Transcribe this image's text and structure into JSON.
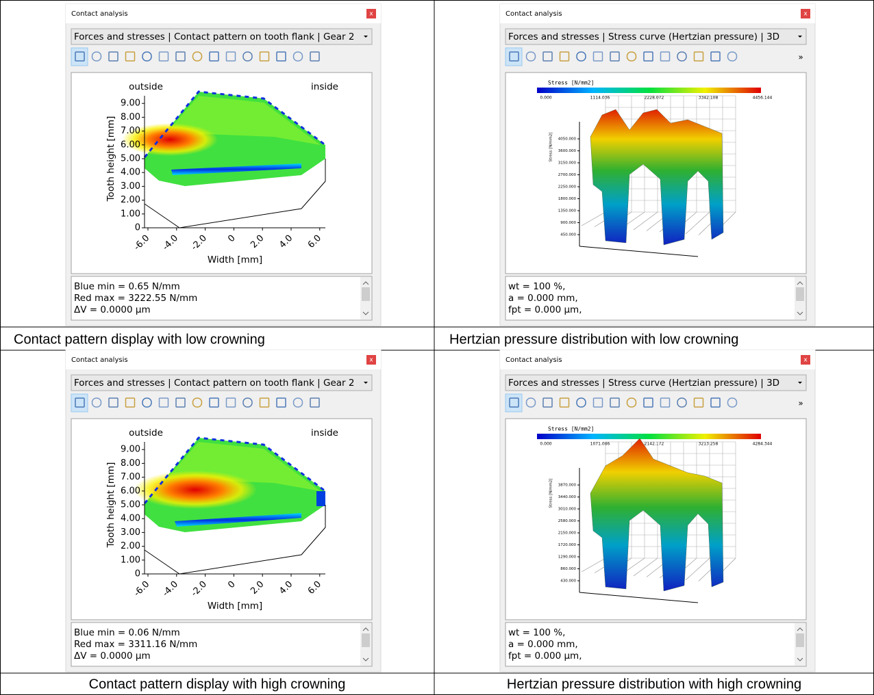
{
  "panels": [
    {
      "type": "contact-pattern",
      "window_title": "Contact analysis",
      "close": "x",
      "dropdown": "Forces and stresses | Contact pattern on tooth flank | Gear 2",
      "outside": "outside",
      "inside": "inside",
      "y_label": "Tooth height [mm]",
      "x_label": "Width [mm]",
      "yticks": [
        "0",
        "1.00",
        "2.00",
        "3.00",
        "4.00",
        "5.00",
        "6.00",
        "7.00",
        "8.00",
        "9.00"
      ],
      "xticks": [
        "-6.0",
        "-4.0",
        "-2.0",
        "0",
        "2.0",
        "4.0",
        "6.0"
      ],
      "info": [
        "Blue min = 0.65 N/mm",
        "Red max = 3222.55 N/mm",
        "ΔV = 0.0000 µm"
      ],
      "caption": "Contact pattern display with low crowning"
    },
    {
      "type": "stress-3d",
      "window_title": "Contact analysis",
      "close": "x",
      "dropdown": "Forces and stresses | Stress curve (Hertzian pressure) | 3D",
      "more": "»",
      "colorbar_title": "Stress  [N/mm2]",
      "colorbar_labels": [
        "0.000",
        "1114.036",
        "2228.072",
        "3342.108",
        "4456.144"
      ],
      "z_label": "Stress [N/mm2]",
      "zticks": [
        "4050.000",
        "3600.000",
        "3150.000",
        "2700.000",
        "2250.000",
        "1800.000",
        "1350.000",
        "900.000",
        "450.000"
      ],
      "info": [
        "wt = 100 %,",
        "a = 0.000 mm,",
        "fpt = 0.000 µm,"
      ],
      "caption": "Hertzian pressure distribution with low crowning"
    },
    {
      "type": "contact-pattern",
      "window_title": "Contact analysis",
      "close": "x",
      "dropdown": "Forces and stresses | Contact pattern on tooth flank | Gear 2",
      "outside": "outside",
      "inside": "inside",
      "y_label": "Tooth height [mm]",
      "x_label": "Width [mm]",
      "yticks": [
        "0",
        "1.00",
        "2.00",
        "3.00",
        "4.00",
        "5.00",
        "6.00",
        "7.00",
        "8.00",
        "9.00"
      ],
      "xticks": [
        "-6.0",
        "-4.0",
        "-2.0",
        "0",
        "2.0",
        "4.0",
        "6.0"
      ],
      "info": [
        "Blue min = 0.06 N/mm",
        "Red max = 3311.16 N/mm",
        "ΔV = 0.0000 µm"
      ],
      "caption": "Contact pattern display with high crowning"
    },
    {
      "type": "stress-3d",
      "window_title": "Contact analysis",
      "close": "x",
      "dropdown": "Forces and stresses | Stress curve (Hertzian pressure) | 3D",
      "more": "»",
      "colorbar_title": "Stress  [N/mm2]",
      "colorbar_labels": [
        "0.000",
        "1071.086",
        "2142.172",
        "3213.258",
        "4284.344"
      ],
      "z_label": "Stress [N/mm2]",
      "zticks": [
        "3870.000",
        "3440.000",
        "3010.000",
        "2580.000",
        "2150.000",
        "1720.000",
        "1290.000",
        "860.000",
        "430.000"
      ],
      "info": [
        "wt = 100 %,",
        "a = 0.000 mm,",
        "fpt = 0.000 µm,"
      ],
      "caption": "Hertzian pressure distribution with high crowning"
    }
  ]
}
